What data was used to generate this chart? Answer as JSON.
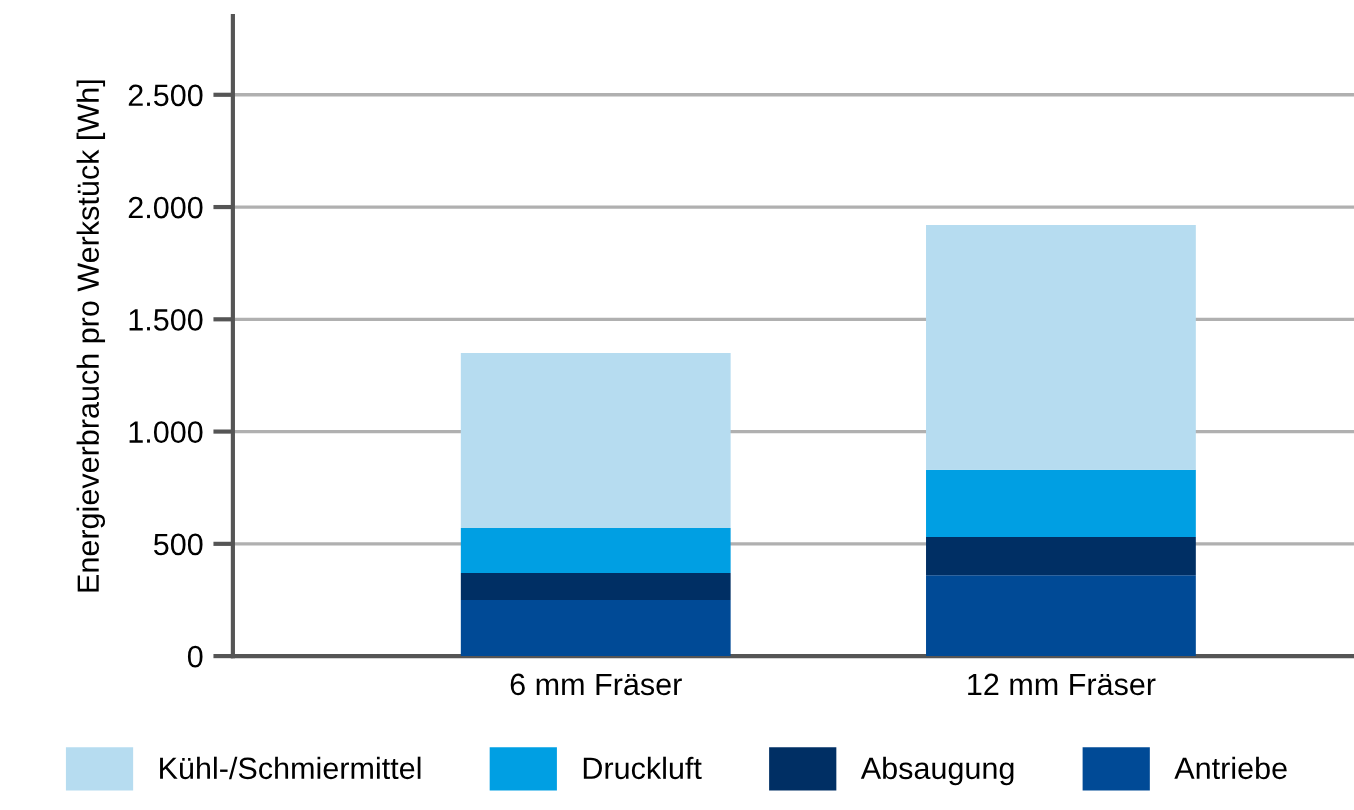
{
  "chart_data": {
    "type": "bar",
    "stacked": true,
    "ylabel": "Energieverbrauch pro Werkstück [Wh]",
    "categories": [
      "6 mm Fräser",
      "12 mm Fräser"
    ],
    "series": [
      {
        "name": "Antriebe",
        "color": "#004a96",
        "values": [
          250,
          360
        ]
      },
      {
        "name": "Absaugung",
        "color": "#002f64",
        "values": [
          120,
          170
        ]
      },
      {
        "name": "Druckluft",
        "color": "#009fe3",
        "values": [
          200,
          300
        ]
      },
      {
        "name": "Kühl-/Schmiermittel",
        "color": "#b6dcf0",
        "values": [
          780,
          1090
        ]
      }
    ],
    "ylim": [
      0,
      2850
    ],
    "yticks": [
      0,
      500,
      {
        "value": 1000,
        "label": "1.000"
      },
      {
        "value": 1500,
        "label": "1.500"
      },
      {
        "value": 2000,
        "label": "2.000"
      },
      {
        "value": 2500,
        "label": "2.500"
      }
    ],
    "grid": "y",
    "legend": "bottom"
  }
}
